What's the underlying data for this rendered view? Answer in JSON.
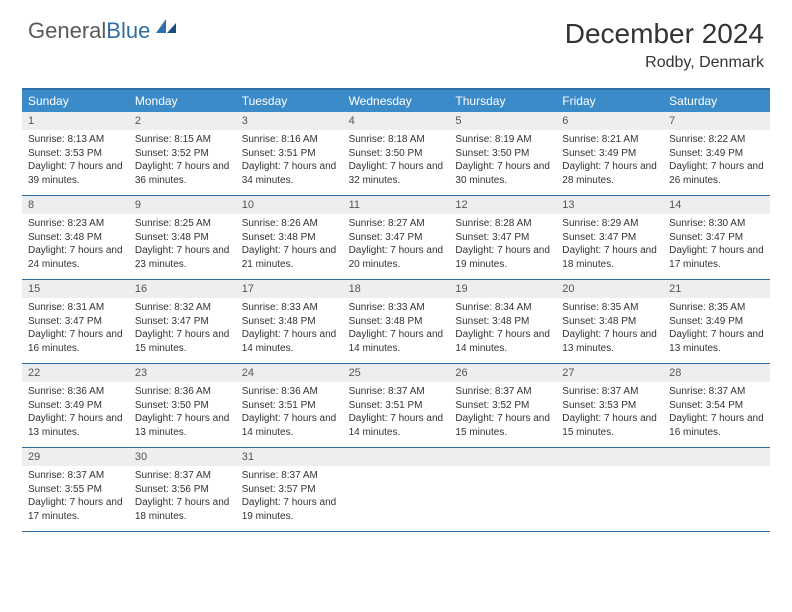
{
  "logo": {
    "word1": "General",
    "word2": "Blue"
  },
  "title": "December 2024",
  "location": "Rodby, Denmark",
  "colors": {
    "header_bar": "#3b8bc9",
    "rule": "#2f6fa8",
    "daynum_bg": "#eceef0",
    "text": "#333333",
    "logo_gray": "#5a5a5a",
    "logo_blue": "#2f6fa8"
  },
  "dow": [
    "Sunday",
    "Monday",
    "Tuesday",
    "Wednesday",
    "Thursday",
    "Friday",
    "Saturday"
  ],
  "days": [
    {
      "n": "1",
      "sr": "8:13 AM",
      "ss": "3:53 PM",
      "dl": "7 hours and 39 minutes."
    },
    {
      "n": "2",
      "sr": "8:15 AM",
      "ss": "3:52 PM",
      "dl": "7 hours and 36 minutes."
    },
    {
      "n": "3",
      "sr": "8:16 AM",
      "ss": "3:51 PM",
      "dl": "7 hours and 34 minutes."
    },
    {
      "n": "4",
      "sr": "8:18 AM",
      "ss": "3:50 PM",
      "dl": "7 hours and 32 minutes."
    },
    {
      "n": "5",
      "sr": "8:19 AM",
      "ss": "3:50 PM",
      "dl": "7 hours and 30 minutes."
    },
    {
      "n": "6",
      "sr": "8:21 AM",
      "ss": "3:49 PM",
      "dl": "7 hours and 28 minutes."
    },
    {
      "n": "7",
      "sr": "8:22 AM",
      "ss": "3:49 PM",
      "dl": "7 hours and 26 minutes."
    },
    {
      "n": "8",
      "sr": "8:23 AM",
      "ss": "3:48 PM",
      "dl": "7 hours and 24 minutes."
    },
    {
      "n": "9",
      "sr": "8:25 AM",
      "ss": "3:48 PM",
      "dl": "7 hours and 23 minutes."
    },
    {
      "n": "10",
      "sr": "8:26 AM",
      "ss": "3:48 PM",
      "dl": "7 hours and 21 minutes."
    },
    {
      "n": "11",
      "sr": "8:27 AM",
      "ss": "3:47 PM",
      "dl": "7 hours and 20 minutes."
    },
    {
      "n": "12",
      "sr": "8:28 AM",
      "ss": "3:47 PM",
      "dl": "7 hours and 19 minutes."
    },
    {
      "n": "13",
      "sr": "8:29 AM",
      "ss": "3:47 PM",
      "dl": "7 hours and 18 minutes."
    },
    {
      "n": "14",
      "sr": "8:30 AM",
      "ss": "3:47 PM",
      "dl": "7 hours and 17 minutes."
    },
    {
      "n": "15",
      "sr": "8:31 AM",
      "ss": "3:47 PM",
      "dl": "7 hours and 16 minutes."
    },
    {
      "n": "16",
      "sr": "8:32 AM",
      "ss": "3:47 PM",
      "dl": "7 hours and 15 minutes."
    },
    {
      "n": "17",
      "sr": "8:33 AM",
      "ss": "3:48 PM",
      "dl": "7 hours and 14 minutes."
    },
    {
      "n": "18",
      "sr": "8:33 AM",
      "ss": "3:48 PM",
      "dl": "7 hours and 14 minutes."
    },
    {
      "n": "19",
      "sr": "8:34 AM",
      "ss": "3:48 PM",
      "dl": "7 hours and 14 minutes."
    },
    {
      "n": "20",
      "sr": "8:35 AM",
      "ss": "3:48 PM",
      "dl": "7 hours and 13 minutes."
    },
    {
      "n": "21",
      "sr": "8:35 AM",
      "ss": "3:49 PM",
      "dl": "7 hours and 13 minutes."
    },
    {
      "n": "22",
      "sr": "8:36 AM",
      "ss": "3:49 PM",
      "dl": "7 hours and 13 minutes."
    },
    {
      "n": "23",
      "sr": "8:36 AM",
      "ss": "3:50 PM",
      "dl": "7 hours and 13 minutes."
    },
    {
      "n": "24",
      "sr": "8:36 AM",
      "ss": "3:51 PM",
      "dl": "7 hours and 14 minutes."
    },
    {
      "n": "25",
      "sr": "8:37 AM",
      "ss": "3:51 PM",
      "dl": "7 hours and 14 minutes."
    },
    {
      "n": "26",
      "sr": "8:37 AM",
      "ss": "3:52 PM",
      "dl": "7 hours and 15 minutes."
    },
    {
      "n": "27",
      "sr": "8:37 AM",
      "ss": "3:53 PM",
      "dl": "7 hours and 15 minutes."
    },
    {
      "n": "28",
      "sr": "8:37 AM",
      "ss": "3:54 PM",
      "dl": "7 hours and 16 minutes."
    },
    {
      "n": "29",
      "sr": "8:37 AM",
      "ss": "3:55 PM",
      "dl": "7 hours and 17 minutes."
    },
    {
      "n": "30",
      "sr": "8:37 AM",
      "ss": "3:56 PM",
      "dl": "7 hours and 18 minutes."
    },
    {
      "n": "31",
      "sr": "8:37 AM",
      "ss": "3:57 PM",
      "dl": "7 hours and 19 minutes."
    }
  ],
  "labels": {
    "sunrise": "Sunrise: ",
    "sunset": "Sunset: ",
    "daylight": "Daylight: "
  }
}
